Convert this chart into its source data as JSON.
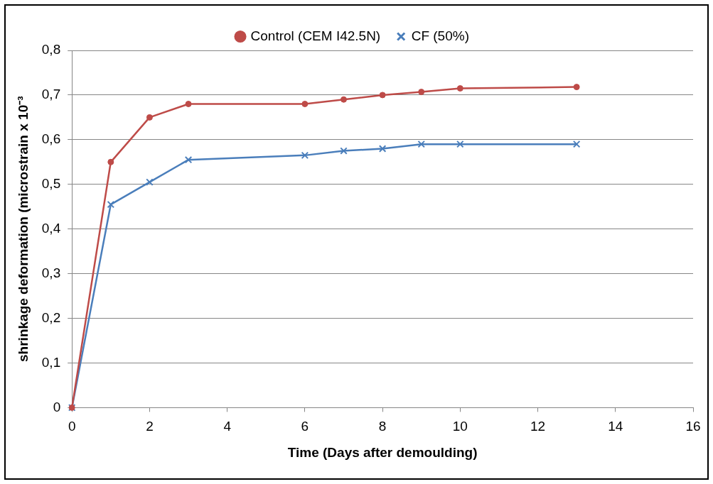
{
  "chart_data": {
    "type": "line",
    "xlabel": "Time (Days after demoulding)",
    "ylabel": "shrinkage deformation (microstrain x 10⁻³",
    "xlim": [
      0,
      16
    ],
    "xticks": [
      0,
      2,
      4,
      6,
      8,
      10,
      12,
      14,
      16
    ],
    "ylim": [
      0,
      0.8
    ],
    "yticks": [
      0,
      {
        "value": 0.1,
        "label": "0,1"
      },
      {
        "value": 0.2,
        "label": "0,2"
      },
      {
        "value": 0.3,
        "label": "0,3"
      },
      {
        "value": 0.4,
        "label": "0,4"
      },
      {
        "value": 0.5,
        "label": "0,5"
      },
      {
        "value": 0.6,
        "label": "0,6"
      },
      {
        "value": 0.7,
        "label": "0,7"
      },
      {
        "value": 0.8,
        "label": "0,8"
      }
    ],
    "grid": "y",
    "legend": "top",
    "x": [
      0,
      1,
      2,
      3,
      6,
      7,
      8,
      9,
      10,
      13
    ],
    "series": [
      {
        "name": "Control (CEM I42.5N)",
        "color": "#be4b48",
        "marker": "circle",
        "values": [
          0,
          0.55,
          0.65,
          0.68,
          0.68,
          0.69,
          0.7,
          0.707,
          0.715,
          0.718
        ]
      },
      {
        "name": "CF (50%)",
        "color": "#4a7ebb",
        "marker": "cross",
        "values": [
          0,
          0.455,
          0.505,
          0.555,
          0.565,
          0.575,
          0.58,
          0.59,
          0.59,
          0.59
        ]
      }
    ]
  }
}
